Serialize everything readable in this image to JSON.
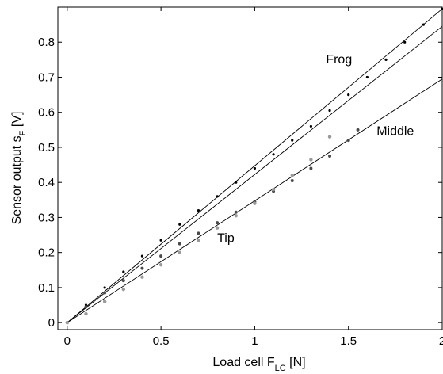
{
  "chart_data": {
    "type": "scatter",
    "title": "",
    "xlabel": {
      "main": "Load cell F",
      "sub": "LC",
      "unit": " [N]"
    },
    "ylabel": {
      "main": "Sensor output s",
      "sub": "F",
      "unit": " [V]"
    },
    "xlim": [
      -0.05,
      2.0
    ],
    "ylim": [
      -0.02,
      0.9
    ],
    "xticks": [
      {
        "value": 0,
        "label": "0"
      },
      {
        "value": 0.5,
        "label": "0.5"
      },
      {
        "value": 1,
        "label": "1"
      },
      {
        "value": 1.5,
        "label": "1.5"
      },
      {
        "value": 2,
        "label": "2"
      }
    ],
    "yticks": [
      {
        "value": 0,
        "label": "0"
      },
      {
        "value": 0.1,
        "label": "0.1"
      },
      {
        "value": 0.2,
        "label": "0.2"
      },
      {
        "value": 0.3,
        "label": "0.3"
      },
      {
        "value": 0.4,
        "label": "0.4"
      },
      {
        "value": 0.5,
        "label": "0.5"
      },
      {
        "value": 0.6,
        "label": "0.6"
      },
      {
        "value": 0.7,
        "label": "0.7"
      },
      {
        "value": 0.8,
        "label": "0.8"
      }
    ],
    "grid": false,
    "series": [
      {
        "name": "Frog",
        "label_at": [
          1.38,
          0.74
        ],
        "color": "#000000",
        "marker_size": 1.6,
        "x": [
          0,
          0.1,
          0.2,
          0.3,
          0.4,
          0.5,
          0.6,
          0.7,
          0.8,
          0.9,
          1.0,
          1.1,
          1.2,
          1.3,
          1.4,
          1.5,
          1.6,
          1.7,
          1.8,
          1.9,
          2.0
        ],
        "y": [
          0.0,
          0.05,
          0.1,
          0.145,
          0.19,
          0.235,
          0.28,
          0.32,
          0.36,
          0.4,
          0.44,
          0.48,
          0.52,
          0.56,
          0.605,
          0.65,
          0.7,
          0.75,
          0.8,
          0.85,
          0.895
        ]
      },
      {
        "name": "Middle",
        "label_at": [
          1.65,
          0.535
        ],
        "color": "#4a4a4a",
        "marker_size": 2.0,
        "x": [
          0,
          0.1,
          0.2,
          0.3,
          0.4,
          0.5,
          0.6,
          0.7,
          0.8,
          0.9,
          1.0,
          1.1,
          1.2,
          1.3,
          1.4,
          1.5,
          1.55
        ],
        "y": [
          0.0,
          0.045,
          0.085,
          0.12,
          0.155,
          0.19,
          0.225,
          0.255,
          0.285,
          0.315,
          0.345,
          0.375,
          0.405,
          0.44,
          0.475,
          0.52,
          0.55
        ]
      },
      {
        "name": "Tip",
        "label_at": [
          0.8,
          0.23
        ],
        "color": "#9a9a9a",
        "marker_size": 2.2,
        "x": [
          0,
          0.1,
          0.2,
          0.3,
          0.4,
          0.5,
          0.6,
          0.7,
          0.8,
          0.9,
          1.0,
          1.1,
          1.2,
          1.3,
          1.4
        ],
        "y": [
          0.0,
          0.025,
          0.06,
          0.095,
          0.13,
          0.165,
          0.2,
          0.235,
          0.27,
          0.305,
          0.34,
          0.38,
          0.42,
          0.465,
          0.53
        ]
      }
    ],
    "fit_lines": [
      {
        "name": "Frog fit",
        "from": [
          0,
          0
        ],
        "to": [
          2.0,
          0.895
        ]
      },
      {
        "name": "Middle fit",
        "from": [
          0,
          0
        ],
        "to": [
          2.0,
          0.695
        ]
      },
      {
        "name": "Tip fit",
        "from": [
          0,
          0
        ],
        "to": [
          2.0,
          0.845
        ]
      }
    ]
  }
}
